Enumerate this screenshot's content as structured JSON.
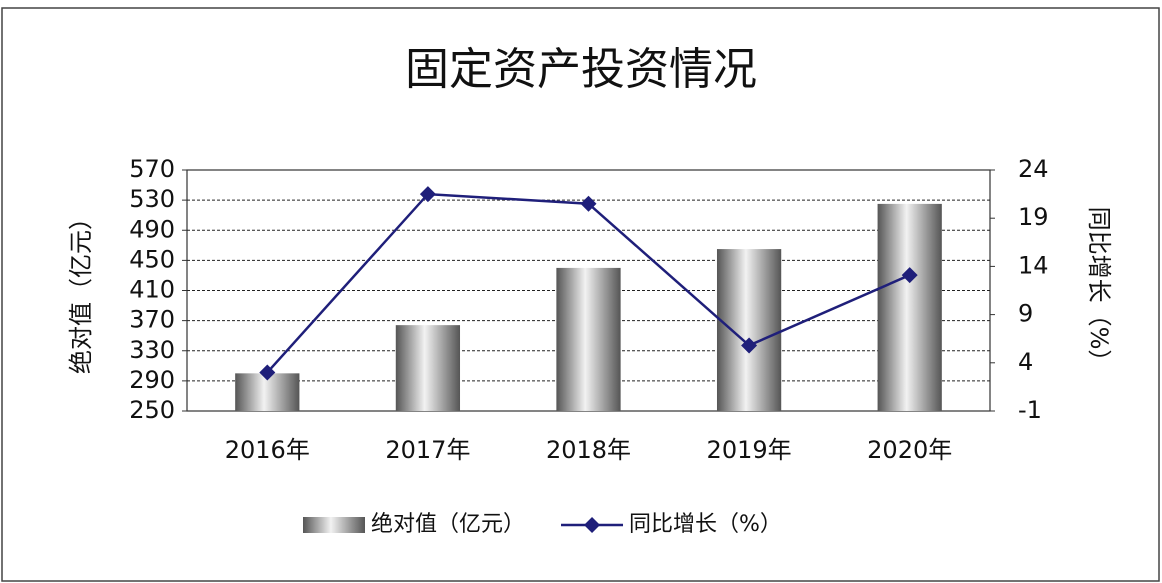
{
  "chart_data": {
    "type": "combo",
    "title": "固定资产投资情况",
    "categories": [
      "2016年",
      "2017年",
      "2018年",
      "2019年",
      "2020年"
    ],
    "y_label": "绝对值（亿元）",
    "y2_label": "同比增长（%）",
    "series": [
      {
        "name": "绝对值（亿元）",
        "type": "bar",
        "color": "#555555",
        "values": [
          300,
          364,
          440,
          465,
          525
        ]
      },
      {
        "name": "同比增长（%）",
        "type": "line",
        "axis": "y2",
        "color": "#1f1f7a",
        "values": [
          3.0,
          21.5,
          20.5,
          5.8,
          13.1
        ]
      }
    ],
    "ylim": [
      250,
      570
    ],
    "yticks": [
      250,
      290,
      330,
      370,
      410,
      450,
      490,
      530,
      570
    ],
    "y2lim": [
      -1,
      24
    ],
    "y2ticks": [
      -1,
      4,
      9,
      14,
      19,
      24
    ],
    "grid": true,
    "legend": "bottom"
  }
}
